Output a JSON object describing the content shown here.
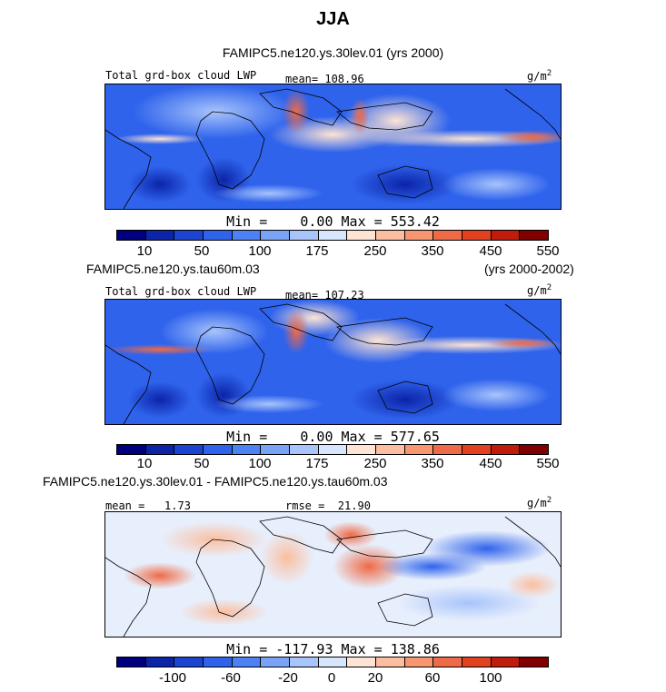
{
  "title": "JJA",
  "panels": [
    {
      "header_left": "FAMIPC5.ne120.ys.30lev.01 (yrs 2000)",
      "header_right": "",
      "label_left": "Total grd-box cloud LWP",
      "label_mid": "mean= 108.96",
      "units": "g/m",
      "units_exp": "2",
      "minmax": "Min =    0.00 Max = 553.42"
    },
    {
      "header_left": "FAMIPC5.ne120.ys.tau60m.03",
      "header_right": "(yrs 2000-2002)",
      "label_left": "Total grd-box cloud LWP",
      "label_mid": "mean= 107.23",
      "units": "g/m",
      "units_exp": "2",
      "minmax": "Min =    0.00 Max = 577.65"
    },
    {
      "header_left": "FAMIPC5.ne120.ys.30lev.01 - FAMIPC5.ne120.ys.tau60m.03",
      "header_right": "",
      "label_left": "mean =   1.73",
      "label_mid": "rmse =  21.90",
      "units": "g/m",
      "units_exp": "2",
      "minmax": "Min = -117.93 Max = 138.86"
    }
  ],
  "chart_data": [
    {
      "type": "heatmap",
      "title": "FAMIPC5.ne120.ys.30lev.01 (yrs 2000)",
      "variable": "Total grd-box cloud LWP",
      "units": "g/m2",
      "mean": 108.96,
      "min": 0.0,
      "max": 553.42,
      "colorbar_ticks": [
        "10",
        "50",
        "100",
        "175",
        "250",
        "350",
        "450",
        "550"
      ],
      "colorbar_colors": [
        "#00007f",
        "#0b24a8",
        "#1c44d0",
        "#2f63ec",
        "#4d82f5",
        "#7aa3f8",
        "#a8c4fb",
        "#d7e6fd",
        "#fde4d4",
        "#fbbea0",
        "#f79670",
        "#ef6a46",
        "#e1411f",
        "#c01c0c",
        "#800000"
      ]
    },
    {
      "type": "heatmap",
      "title": "FAMIPC5.ne120.ys.tau60m.03 (yrs 2000-2002)",
      "variable": "Total grd-box cloud LWP",
      "units": "g/m2",
      "mean": 107.23,
      "min": 0.0,
      "max": 577.65,
      "colorbar_ticks": [
        "10",
        "50",
        "100",
        "175",
        "250",
        "350",
        "450",
        "550"
      ],
      "colorbar_colors": [
        "#00007f",
        "#0b24a8",
        "#1c44d0",
        "#2f63ec",
        "#4d82f5",
        "#7aa3f8",
        "#a8c4fb",
        "#d7e6fd",
        "#fde4d4",
        "#fbbea0",
        "#f79670",
        "#ef6a46",
        "#e1411f",
        "#c01c0c",
        "#800000"
      ]
    },
    {
      "type": "heatmap",
      "title": "FAMIPC5.ne120.ys.30lev.01 - FAMIPC5.ne120.ys.tau60m.03",
      "units": "g/m2",
      "mean": 1.73,
      "rmse": 21.9,
      "min": -117.93,
      "max": 138.86,
      "colorbar_ticks": [
        "-100",
        "-60",
        "-20",
        "0",
        "20",
        "60",
        "100"
      ],
      "colorbar_colors": [
        "#00007f",
        "#0b24a8",
        "#1c44d0",
        "#2f63ec",
        "#4d82f5",
        "#7aa3f8",
        "#a8c4fb",
        "#d7e6fd",
        "#fde4d4",
        "#fbbea0",
        "#f79670",
        "#ef6a46",
        "#e1411f",
        "#c01c0c",
        "#800000"
      ]
    }
  ]
}
